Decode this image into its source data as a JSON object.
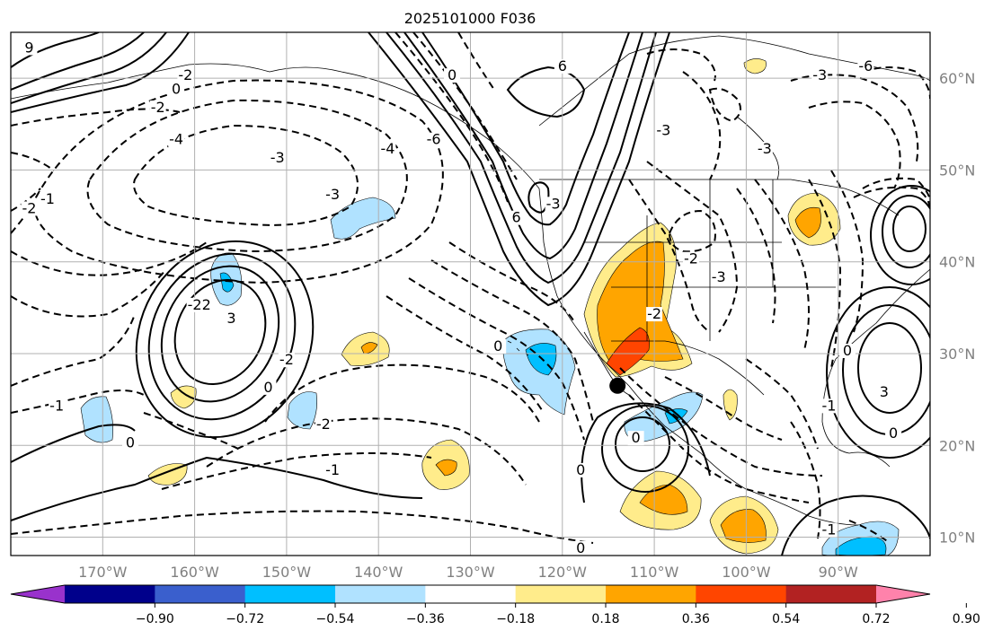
{
  "title": "2025101000 F036",
  "map": {
    "lon_range": [
      -180,
      -80
    ],
    "lat_range": [
      8,
      65
    ],
    "lon_ticks": [
      -170,
      -160,
      -150,
      -140,
      -130,
      -120,
      -110,
      -100,
      -90
    ],
    "lon_tick_labels": [
      "170°W",
      "160°W",
      "150°W",
      "140°W",
      "130°W",
      "120°W",
      "110°W",
      "100°W",
      "90°W"
    ],
    "lat_ticks": [
      10,
      20,
      30,
      40,
      50,
      60
    ],
    "lat_tick_labels": [
      "10°N",
      "20°N",
      "30°N",
      "40°N",
      "50°N",
      "60°N"
    ],
    "grid": true,
    "marker": {
      "label": "point",
      "lon": -114,
      "lat": 26.5,
      "color": "#000000"
    }
  },
  "colorbar": {
    "orientation": "horizontal",
    "extend": "both",
    "colors": [
      "#9932CC",
      "#00008B",
      "#3A5FCD",
      "#00BFFF",
      "#B0E2FF",
      "#FFFFFF",
      "#FFEC8B",
      "#FFA500",
      "#FF4500",
      "#B22222",
      "#FF82AB"
    ],
    "tick_labels": [
      "−0.90",
      "−0.72",
      "−0.54",
      "−0.36",
      "−0.18",
      "0.18",
      "0.36",
      "0.54",
      "0.72",
      "0.90"
    ]
  },
  "contour_labels": [
    {
      "text": "0",
      "lon": -167,
      "lat": 20
    },
    {
      "text": "-1",
      "lon": -175,
      "lat": 24
    },
    {
      "text": "-2",
      "lon": -159,
      "lat": 35
    },
    {
      "text": "3",
      "lon": -156,
      "lat": 33.5
    },
    {
      "text": "-2",
      "lon": -150,
      "lat": 29
    },
    {
      "text": "0",
      "lon": -152,
      "lat": 26
    },
    {
      "text": "-2",
      "lon": -160,
      "lat": 35
    },
    {
      "text": "-3",
      "lon": -151,
      "lat": 51
    },
    {
      "text": "-4",
      "lon": -162,
      "lat": 53
    },
    {
      "text": "-4",
      "lon": -139,
      "lat": 52
    },
    {
      "text": "-3",
      "lon": -145,
      "lat": 47
    },
    {
      "text": "-1",
      "lon": -145,
      "lat": 17
    },
    {
      "text": "-2",
      "lon": -146,
      "lat": 22
    },
    {
      "text": "0",
      "lon": -132,
      "lat": 60
    },
    {
      "text": "-6",
      "lon": -134,
      "lat": 53
    },
    {
      "text": "6",
      "lon": -125,
      "lat": 44.5
    },
    {
      "text": "-3",
      "lon": -121,
      "lat": 46
    },
    {
      "text": "0",
      "lon": -127,
      "lat": 30.5
    },
    {
      "text": "6",
      "lon": -120,
      "lat": 61
    },
    {
      "text": "-3",
      "lon": -109,
      "lat": 54
    },
    {
      "text": "-2",
      "lon": -106,
      "lat": 40
    },
    {
      "text": "-3",
      "lon": -103,
      "lat": 38
    },
    {
      "text": "-2",
      "lon": -110,
      "lat": 34
    },
    {
      "text": "0",
      "lon": -118,
      "lat": 17
    },
    {
      "text": "0",
      "lon": -112,
      "lat": 20.5
    },
    {
      "text": "0",
      "lon": -118,
      "lat": 8.5
    },
    {
      "text": "-3",
      "lon": -98,
      "lat": 52
    },
    {
      "text": "-3",
      "lon": -92,
      "lat": 60
    },
    {
      "text": "-6",
      "lon": -87,
      "lat": 61
    },
    {
      "text": "-1",
      "lon": -91,
      "lat": 24
    },
    {
      "text": "0",
      "lon": -89,
      "lat": 30
    },
    {
      "text": "3",
      "lon": -85,
      "lat": 25.5
    },
    {
      "text": "0",
      "lon": -84,
      "lat": 21
    },
    {
      "text": "-1",
      "lon": -91,
      "lat": 10.5
    },
    {
      "text": "-2",
      "lon": -178,
      "lat": 45.5
    },
    {
      "text": "-1",
      "lon": -176,
      "lat": 46.5
    },
    {
      "text": "9",
      "lon": -178,
      "lat": 63
    },
    {
      "text": "-2",
      "lon": -161,
      "lat": 60
    },
    {
      "text": "0",
      "lon": -162,
      "lat": 58.5
    },
    {
      "text": "-2",
      "lon": -164,
      "lat": 56.5
    }
  ]
}
